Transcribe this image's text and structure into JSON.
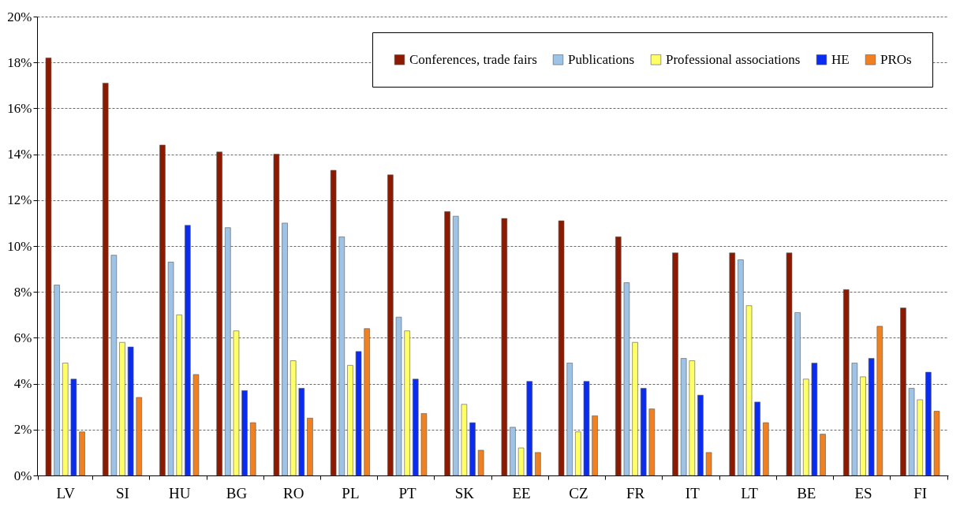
{
  "chart_data": {
    "type": "bar",
    "categories": [
      "LV",
      "SI",
      "HU",
      "BG",
      "RO",
      "PL",
      "PT",
      "SK",
      "EE",
      "CZ",
      "FR",
      "IT",
      "LT",
      "BE",
      "ES",
      "FI"
    ],
    "series": [
      {
        "name": "Conferences, trade fairs",
        "color": "#8b1a00",
        "values": [
          18.2,
          17.1,
          14.4,
          14.1,
          14.0,
          13.3,
          13.1,
          11.5,
          11.2,
          11.1,
          10.4,
          9.7,
          9.7,
          9.7,
          8.1,
          7.3
        ]
      },
      {
        "name": "Publications",
        "color": "#9dc3e6",
        "values": [
          8.3,
          9.6,
          9.3,
          10.8,
          11.0,
          10.4,
          6.9,
          11.3,
          2.1,
          4.9,
          8.4,
          5.1,
          9.4,
          7.1,
          4.9,
          3.8
        ]
      },
      {
        "name": "Professional associations",
        "color": "#ffff66",
        "values": [
          4.9,
          5.8,
          7.0,
          6.3,
          5.0,
          4.8,
          6.3,
          3.1,
          1.2,
          1.9,
          5.8,
          5.0,
          7.4,
          4.2,
          4.3,
          3.3
        ]
      },
      {
        "name": "HE",
        "color": "#0a2cf0",
        "values": [
          4.2,
          5.6,
          10.9,
          3.7,
          3.8,
          5.4,
          4.2,
          2.3,
          4.1,
          4.1,
          3.8,
          3.5,
          3.2,
          4.9,
          5.1,
          4.5
        ]
      },
      {
        "name": "PROs",
        "color": "#f08020",
        "values": [
          1.9,
          3.4,
          4.4,
          2.3,
          2.5,
          6.4,
          2.7,
          1.1,
          1.0,
          2.6,
          2.9,
          1.0,
          2.3,
          1.8,
          6.5,
          2.8
        ]
      }
    ],
    "ylim": [
      0,
      20
    ],
    "yticks": [
      {
        "value": 0,
        "label": "0%"
      },
      {
        "value": 2,
        "label": "2%"
      },
      {
        "value": 4,
        "label": "4%"
      },
      {
        "value": 6,
        "label": "6%"
      },
      {
        "value": 8,
        "label": "8%"
      },
      {
        "value": 10,
        "label": "10%"
      },
      {
        "value": 12,
        "label": "12%"
      },
      {
        "value": 14,
        "label": "14%"
      },
      {
        "value": 16,
        "label": "16%"
      },
      {
        "value": 18,
        "label": "18%"
      },
      {
        "value": 20,
        "label": "20%"
      }
    ],
    "grid": "y",
    "legend": "top right"
  }
}
